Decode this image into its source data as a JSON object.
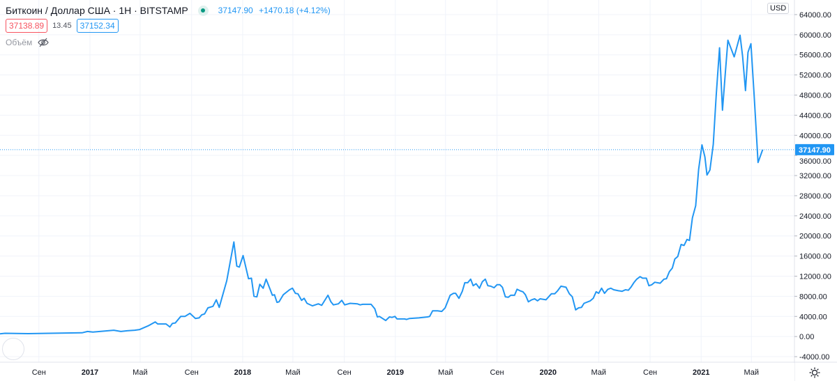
{
  "header": {
    "title": "Биткоин / Доллар США · 1H · BITSTAMP",
    "market_status": "open",
    "last_price": "37147.90",
    "change": "+1470.18 (+4.12%)",
    "bid": "37138.89",
    "spread": "13.45",
    "ask": "37152.34",
    "volume_label": "Объём",
    "volume_icon": "eye-crossed-icon"
  },
  "axis": {
    "currency": "USD",
    "price_label": "37147.90",
    "settings_icon": "gear-icon"
  },
  "colors": {
    "line": "#2196f3",
    "bid": "#f7525f",
    "status": "#089981"
  },
  "chart_data": {
    "type": "line",
    "xlim": [
      "2016-05-31",
      "2021-08-12"
    ],
    "ylim": [
      -5100,
      66900
    ],
    "grid": true,
    "y_ticks": [
      "-4000.00",
      "0.00",
      "4000.00",
      "8000.00",
      "12000.00",
      "16000.00",
      "20000.00",
      "24000.00",
      "28000.00",
      "32000.00",
      "36000.00",
      "40000.00",
      "44000.00",
      "48000.00",
      "52000.00",
      "56000.00",
      "60000.00",
      "64000.00"
    ],
    "x_ticks": [
      {
        "date": "2016-09-01",
        "label": "Сен",
        "bold": false
      },
      {
        "date": "2017-01-01",
        "label": "2017",
        "bold": true
      },
      {
        "date": "2017-05-01",
        "label": "Май",
        "bold": false
      },
      {
        "date": "2017-09-01",
        "label": "Сен",
        "bold": false
      },
      {
        "date": "2018-01-01",
        "label": "2018",
        "bold": true
      },
      {
        "date": "2018-05-01",
        "label": "Май",
        "bold": false
      },
      {
        "date": "2018-09-01",
        "label": "Сен",
        "bold": false
      },
      {
        "date": "2019-01-01",
        "label": "2019",
        "bold": true
      },
      {
        "date": "2019-05-01",
        "label": "Май",
        "bold": false
      },
      {
        "date": "2019-09-01",
        "label": "Сен",
        "bold": false
      },
      {
        "date": "2020-01-01",
        "label": "2020",
        "bold": true
      },
      {
        "date": "2020-05-01",
        "label": "Май",
        "bold": false
      },
      {
        "date": "2020-09-01",
        "label": "Сен",
        "bold": false
      },
      {
        "date": "2021-01-01",
        "label": "2021",
        "bold": true
      },
      {
        "date": "2021-05-01",
        "label": "Май",
        "bold": false
      }
    ],
    "last_value": 37147.9,
    "series": [
      {
        "points": [
          [
            "2016-05-31",
            550
          ],
          [
            "2016-06-12",
            650
          ],
          [
            "2016-08-06",
            580
          ],
          [
            "2016-12-13",
            750
          ],
          [
            "2016-12-26",
            1000
          ],
          [
            "2017-01-08",
            900
          ],
          [
            "2017-02-27",
            1250
          ],
          [
            "2017-03-16",
            1000
          ],
          [
            "2017-03-31",
            1150
          ],
          [
            "2017-04-18",
            1250
          ],
          [
            "2017-04-30",
            1400
          ],
          [
            "2017-05-22",
            2200
          ],
          [
            "2017-06-06",
            2900
          ],
          [
            "2017-06-12",
            2500
          ],
          [
            "2017-07-02",
            2500
          ],
          [
            "2017-07-11",
            1900
          ],
          [
            "2017-07-17",
            2600
          ],
          [
            "2017-07-24",
            2700
          ],
          [
            "2017-08-06",
            4000
          ],
          [
            "2017-08-16",
            4000
          ],
          [
            "2017-08-28",
            4600
          ],
          [
            "2017-09-10",
            3600
          ],
          [
            "2017-09-19",
            3700
          ],
          [
            "2017-09-25",
            4300
          ],
          [
            "2017-10-02",
            4500
          ],
          [
            "2017-10-10",
            5700
          ],
          [
            "2017-10-22",
            6000
          ],
          [
            "2017-10-30",
            7300
          ],
          [
            "2017-11-06",
            5800
          ],
          [
            "2017-11-24",
            11100
          ],
          [
            "2017-12-11",
            18800
          ],
          [
            "2017-12-18",
            14000
          ],
          [
            "2017-12-24",
            13800
          ],
          [
            "2018-01-02",
            16100
          ],
          [
            "2018-01-15",
            11500
          ],
          [
            "2018-01-22",
            11600
          ],
          [
            "2018-01-28",
            8000
          ],
          [
            "2018-02-04",
            7900
          ],
          [
            "2018-02-11",
            10400
          ],
          [
            "2018-02-19",
            9600
          ],
          [
            "2018-02-26",
            11400
          ],
          [
            "2018-03-08",
            9300
          ],
          [
            "2018-03-13",
            8200
          ],
          [
            "2018-03-18",
            8300
          ],
          [
            "2018-03-24",
            6800
          ],
          [
            "2018-03-29",
            6900
          ],
          [
            "2018-04-08",
            8300
          ],
          [
            "2018-04-23",
            9300
          ],
          [
            "2018-04-30",
            9600
          ],
          [
            "2018-05-07",
            8600
          ],
          [
            "2018-05-13",
            8500
          ],
          [
            "2018-05-22",
            7200
          ],
          [
            "2018-05-28",
            7600
          ],
          [
            "2018-06-04",
            6600
          ],
          [
            "2018-06-17",
            6100
          ],
          [
            "2018-07-01",
            6500
          ],
          [
            "2018-07-09",
            6200
          ],
          [
            "2018-07-24",
            8200
          ],
          [
            "2018-07-31",
            6900
          ],
          [
            "2018-08-06",
            6300
          ],
          [
            "2018-08-18",
            6500
          ],
          [
            "2018-08-26",
            7200
          ],
          [
            "2018-09-02",
            6300
          ],
          [
            "2018-09-15",
            6600
          ],
          [
            "2018-10-02",
            6500
          ],
          [
            "2018-10-09",
            6300
          ],
          [
            "2018-10-15",
            6400
          ],
          [
            "2018-11-04",
            6400
          ],
          [
            "2018-11-13",
            5500
          ],
          [
            "2018-11-19",
            3900
          ],
          [
            "2018-11-24",
            4000
          ],
          [
            "2018-12-09",
            3200
          ],
          [
            "2018-12-18",
            3900
          ],
          [
            "2018-12-24",
            3800
          ],
          [
            "2018-12-31",
            4000
          ],
          [
            "2019-01-05",
            3500
          ],
          [
            "2019-01-23",
            3500
          ],
          [
            "2019-01-28",
            3400
          ],
          [
            "2019-02-04",
            3600
          ],
          [
            "2019-02-26",
            3700
          ],
          [
            "2019-03-19",
            3900
          ],
          [
            "2019-03-24",
            4000
          ],
          [
            "2019-03-31",
            5100
          ],
          [
            "2019-04-12",
            5100
          ],
          [
            "2019-04-22",
            5000
          ],
          [
            "2019-04-30",
            5700
          ],
          [
            "2019-05-12",
            8200
          ],
          [
            "2019-05-20",
            8600
          ],
          [
            "2019-05-25",
            8600
          ],
          [
            "2019-06-02",
            7600
          ],
          [
            "2019-06-10",
            9000
          ],
          [
            "2019-06-16",
            10700
          ],
          [
            "2019-06-23",
            10700
          ],
          [
            "2019-06-30",
            11400
          ],
          [
            "2019-07-06",
            10100
          ],
          [
            "2019-07-13",
            10500
          ],
          [
            "2019-07-21",
            9600
          ],
          [
            "2019-07-28",
            10900
          ],
          [
            "2019-08-04",
            11400
          ],
          [
            "2019-08-10",
            10100
          ],
          [
            "2019-08-17",
            10000
          ],
          [
            "2019-08-25",
            9700
          ],
          [
            "2019-09-01",
            10300
          ],
          [
            "2019-09-08",
            10300
          ],
          [
            "2019-09-14",
            9800
          ],
          [
            "2019-09-21",
            7900
          ],
          [
            "2019-09-28",
            7800
          ],
          [
            "2019-10-04",
            8200
          ],
          [
            "2019-10-13",
            8200
          ],
          [
            "2019-10-19",
            9400
          ],
          [
            "2019-10-26",
            9100
          ],
          [
            "2019-11-02",
            8900
          ],
          [
            "2019-11-08",
            8300
          ],
          [
            "2019-11-15",
            6900
          ],
          [
            "2019-11-23",
            7300
          ],
          [
            "2019-11-30",
            7500
          ],
          [
            "2019-12-07",
            7100
          ],
          [
            "2019-12-13",
            7500
          ],
          [
            "2019-12-27",
            7300
          ],
          [
            "2020-01-09",
            8500
          ],
          [
            "2020-01-17",
            8500
          ],
          [
            "2020-01-24",
            9100
          ],
          [
            "2020-02-01",
            10000
          ],
          [
            "2020-02-13",
            9800
          ],
          [
            "2020-02-21",
            8500
          ],
          [
            "2020-02-28",
            7900
          ],
          [
            "2020-03-07",
            5300
          ],
          [
            "2020-03-14",
            5700
          ],
          [
            "2020-03-21",
            5800
          ],
          [
            "2020-03-27",
            6600
          ],
          [
            "2020-04-11",
            7100
          ],
          [
            "2020-04-18",
            7600
          ],
          [
            "2020-04-25",
            8900
          ],
          [
            "2020-05-01",
            8600
          ],
          [
            "2020-05-08",
            9600
          ],
          [
            "2020-05-15",
            8600
          ],
          [
            "2020-05-23",
            9400
          ],
          [
            "2020-05-30",
            9600
          ],
          [
            "2020-06-06",
            9300
          ],
          [
            "2020-06-17",
            9100
          ],
          [
            "2020-06-26",
            9000
          ],
          [
            "2020-07-04",
            9300
          ],
          [
            "2020-07-11",
            9200
          ],
          [
            "2020-07-17",
            9800
          ],
          [
            "2020-07-24",
            10700
          ],
          [
            "2020-07-31",
            11400
          ],
          [
            "2020-08-08",
            11900
          ],
          [
            "2020-08-14",
            11600
          ],
          [
            "2020-08-23",
            11600
          ],
          [
            "2020-08-29",
            10100
          ],
          [
            "2020-09-05",
            10300
          ],
          [
            "2020-09-12",
            10800
          ],
          [
            "2020-09-25",
            10600
          ],
          [
            "2020-10-04",
            11400
          ],
          [
            "2020-10-10",
            11500
          ],
          [
            "2020-10-17",
            12900
          ],
          [
            "2020-10-24",
            13600
          ],
          [
            "2020-10-30",
            15400
          ],
          [
            "2020-11-06",
            15900
          ],
          [
            "2020-11-14",
            18300
          ],
          [
            "2020-11-21",
            18100
          ],
          [
            "2020-11-28",
            19300
          ],
          [
            "2020-12-04",
            19100
          ],
          [
            "2020-12-11",
            23600
          ],
          [
            "2020-12-19",
            26000
          ],
          [
            "2020-12-26",
            33200
          ],
          [
            "2021-01-03",
            38100
          ],
          [
            "2021-01-10",
            35700
          ],
          [
            "2021-01-15",
            32100
          ],
          [
            "2021-01-22",
            33100
          ],
          [
            "2021-01-30",
            38200
          ],
          [
            "2021-02-06",
            47900
          ],
          [
            "2021-02-14",
            57400
          ],
          [
            "2021-02-21",
            45000
          ],
          [
            "2021-02-28",
            52600
          ],
          [
            "2021-03-06",
            58900
          ],
          [
            "2021-03-21",
            55600
          ],
          [
            "2021-04-04",
            59900
          ],
          [
            "2021-04-10",
            55800
          ],
          [
            "2021-04-17",
            48900
          ],
          [
            "2021-04-23",
            56500
          ],
          [
            "2021-04-30",
            58200
          ],
          [
            "2021-05-08",
            47500
          ],
          [
            "2021-05-17",
            34600
          ],
          [
            "2021-05-28",
            37147.9
          ]
        ]
      }
    ]
  }
}
